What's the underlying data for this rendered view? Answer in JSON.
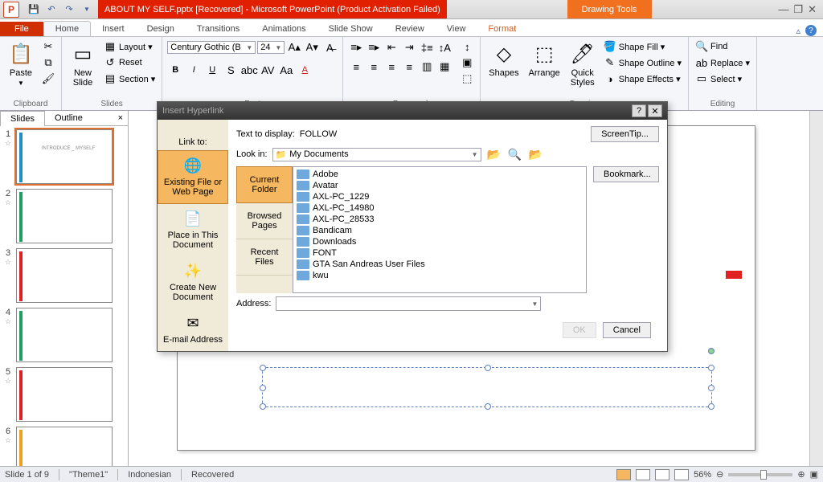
{
  "titlebar": {
    "app_letter": "P",
    "title": "ABOUT MY SELF.pptx [Recovered]  -  Microsoft PowerPoint (Product Activation Failed)",
    "tools_title": "Drawing Tools"
  },
  "tabs": {
    "file": "File",
    "home": "Home",
    "insert": "Insert",
    "design": "Design",
    "transitions": "Transitions",
    "animations": "Animations",
    "slideshow": "Slide Show",
    "review": "Review",
    "view": "View",
    "format": "Format"
  },
  "ribbon": {
    "clipboard": {
      "paste": "Paste",
      "label": "Clipboard"
    },
    "slides": {
      "new_slide": "New\nSlide",
      "layout": "Layout ▾",
      "reset": "Reset",
      "section": "Section ▾",
      "label": "Slides"
    },
    "font": {
      "name": "Century Gothic (B",
      "size": "24",
      "label": "Font"
    },
    "paragraph": {
      "label": "Paragraph"
    },
    "drawing": {
      "shapes": "Shapes",
      "arrange": "Arrange",
      "quick": "Quick\nStyles",
      "fill": "Shape Fill ▾",
      "outline": "Shape Outline ▾",
      "effects": "Shape Effects ▾",
      "label": "Drawing"
    },
    "editing": {
      "find": "Find",
      "replace": "Replace ▾",
      "select": "Select ▾",
      "label": "Editing"
    }
  },
  "slides_panel": {
    "slides_tab": "Slides",
    "outline_tab": "Outline"
  },
  "thumbs": [
    {
      "num": "1",
      "accent": "#2090c0",
      "text": "INTRODUCE _ MYSELF",
      "active": true
    },
    {
      "num": "2",
      "accent": "#20a060",
      "text": ""
    },
    {
      "num": "3",
      "accent": "#e02020",
      "text": ""
    },
    {
      "num": "4",
      "accent": "#20a060",
      "text": ""
    },
    {
      "num": "5",
      "accent": "#e02020",
      "text": ""
    },
    {
      "num": "6",
      "accent": "#f0a020",
      "text": ""
    }
  ],
  "dialog": {
    "title": "Insert Hyperlink",
    "link_to": "Link to:",
    "text_to_display": "Text to display:",
    "text_value": "FOLLOW",
    "screentip": "ScreenTip...",
    "look_in": "Look in:",
    "look_in_value": "My Documents",
    "address": "Address:",
    "bookmark": "Bookmark...",
    "ok": "OK",
    "cancel": "Cancel",
    "link_types": {
      "existing": "Existing File or Web Page",
      "place": "Place in This Document",
      "create": "Create New Document",
      "email": "E-mail Address"
    },
    "file_tabs": {
      "current": "Current Folder",
      "browsed": "Browsed Pages",
      "recent": "Recent Files"
    },
    "files": [
      "Adobe",
      "Avatar",
      "AXL-PC_1229",
      "AXL-PC_14980",
      "AXL-PC_28533",
      "Bandicam",
      "Downloads",
      "FONT",
      "GTA San Andreas User Files",
      "kwu"
    ]
  },
  "statusbar": {
    "slide": "Slide 1 of 9",
    "theme": "\"Theme1\"",
    "lang": "Indonesian",
    "recovered": "Recovered",
    "zoom": "56%"
  },
  "colors": {
    "accent_orange": "#e07030",
    "title_red": "#e02000"
  }
}
